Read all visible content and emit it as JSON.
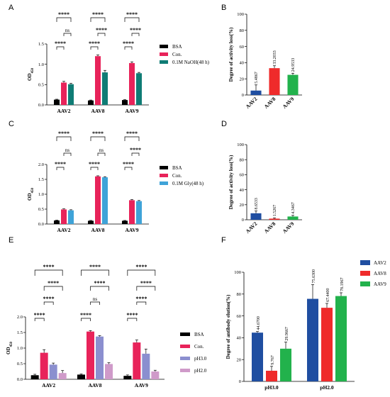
{
  "panels": {
    "A": "A",
    "B": "B",
    "C": "C",
    "D": "D",
    "E": "E",
    "F": "F"
  },
  "chart_data": [
    {
      "id": "A",
      "type": "bar",
      "ylabel": "OD450",
      "ylim": [
        0,
        1.5
      ],
      "yticks": [
        "0.0",
        "0.5",
        "1.0",
        "1.5"
      ],
      "categories": [
        "AAV2",
        "AAV8",
        "AAV9"
      ],
      "series": [
        {
          "name": "BSA",
          "values": [
            0.13,
            0.11,
            0.12
          ],
          "errors": [
            0.01,
            0.01,
            0.01
          ],
          "color": "#000000"
        },
        {
          "name": "Con.",
          "values": [
            0.55,
            1.2,
            1.03
          ],
          "errors": [
            0.03,
            0.03,
            0.03
          ],
          "color": "#e8235a"
        },
        {
          "name": "0.1M NaOH(48 h)",
          "values": [
            0.51,
            0.8,
            0.78
          ],
          "errors": [
            0.02,
            0.05,
            0.02
          ],
          "color": "#0f7c75"
        }
      ],
      "significance": {
        "stars": "****",
        "ns": "ns"
      }
    },
    {
      "id": "B",
      "type": "bar",
      "ylabel": "Degree of activity loss(%)",
      "ylim": [
        0,
        100
      ],
      "yticks": [
        "0",
        "20",
        "40",
        "60",
        "80",
        "100"
      ],
      "categories": [
        "AAV2",
        "AAV8",
        "AAV9"
      ],
      "values": [
        5.4867,
        33.2033,
        24.9533
      ],
      "labels": [
        "5.4867",
        "33.2033",
        "24.9533"
      ],
      "errors": [
        7,
        3,
        2
      ],
      "colors": [
        "#1f4ea1",
        "#ef2b2b",
        "#22b24c"
      ]
    },
    {
      "id": "C",
      "type": "bar",
      "ylabel": "OD450",
      "ylim": [
        0,
        2.0
      ],
      "yticks": [
        "0.0",
        "0.5",
        "1.0",
        "1.5",
        "2.0"
      ],
      "categories": [
        "AAV2",
        "AAV8",
        "AAV9"
      ],
      "series": [
        {
          "name": "BSA",
          "values": [
            0.12,
            0.11,
            0.11
          ],
          "errors": [
            0.01,
            0.01,
            0.01
          ],
          "color": "#000000"
        },
        {
          "name": "Con.",
          "values": [
            0.49,
            1.6,
            0.8
          ],
          "errors": [
            0.02,
            0.02,
            0.02
          ],
          "color": "#e8235a"
        },
        {
          "name": "0.1M Gly(48 h)",
          "values": [
            0.46,
            1.57,
            0.77
          ],
          "errors": [
            0.02,
            0.02,
            0.02
          ],
          "color": "#3fa3d8"
        }
      ],
      "significance": {
        "stars": "****",
        "ns": "ns"
      }
    },
    {
      "id": "D",
      "type": "bar",
      "ylabel": "Degree of activity loss(%)",
      "ylim": [
        0,
        100
      ],
      "yticks": [
        "0",
        "20",
        "40",
        "60",
        "80",
        "100"
      ],
      "categories": [
        "AAV2",
        "AAV8",
        "AAV9"
      ],
      "values": [
        8.6533,
        1.5267,
        4.3467
      ],
      "labels": [
        "8.6533",
        "1.5267",
        "4.3467"
      ],
      "errors": [
        3,
        1,
        1.5
      ],
      "colors": [
        "#1f4ea1",
        "#ef2b2b",
        "#22b24c"
      ]
    },
    {
      "id": "E",
      "type": "bar",
      "ylabel": "OD450",
      "ylim": [
        0,
        2.0
      ],
      "yticks": [
        "0.0",
        "0.5",
        "1.0",
        "1.5",
        "2.0"
      ],
      "categories": [
        "AAV2",
        "AAV8",
        "AAV9"
      ],
      "series": [
        {
          "name": "BSA",
          "values": [
            0.13,
            0.15,
            0.11
          ],
          "errors": [
            0.03,
            0.02,
            0.03
          ],
          "color": "#000000"
        },
        {
          "name": "Con.",
          "values": [
            0.85,
            1.53,
            1.18
          ],
          "errors": [
            0.1,
            0.03,
            0.08
          ],
          "color": "#e8235a"
        },
        {
          "name": "pH3.0",
          "values": [
            0.47,
            1.37,
            0.82
          ],
          "errors": [
            0.05,
            0.03,
            0.15
          ],
          "color": "#8b8fcf"
        },
        {
          "name": "pH2.0",
          "values": [
            0.2,
            0.49,
            0.25
          ],
          "errors": [
            0.08,
            0.04,
            0.04
          ],
          "color": "#cf9ac9"
        }
      ],
      "significance": {
        "stars": "****",
        "ns": "ns"
      }
    },
    {
      "id": "F",
      "type": "bar",
      "ylabel": "Degree of antibody elution(%)",
      "ylim": [
        0,
        100
      ],
      "yticks": [
        "0",
        "20",
        "40",
        "60",
        "80",
        "100"
      ],
      "categories": [
        "pH3.0",
        "pH2.0"
      ],
      "series": [
        {
          "name": "AAV2",
          "values": [
            44.67,
            75.63
          ],
          "labels": [
            "44.6700",
            "75.6300"
          ],
          "errors": [
            1,
            13
          ],
          "color": "#1f4ea1"
        },
        {
          "name": "AAV8",
          "values": [
            9.767,
            67.44
          ],
          "labels": [
            "9.767",
            "67.4400"
          ],
          "errors": [
            4,
            4
          ],
          "color": "#ef2b2b"
        },
        {
          "name": "AAV9",
          "values": [
            29.9667,
            78.1967
          ],
          "labels": [
            "29.9667",
            "78.1967"
          ],
          "errors": [
            6,
            3
          ],
          "color": "#22b24c"
        }
      ]
    }
  ]
}
